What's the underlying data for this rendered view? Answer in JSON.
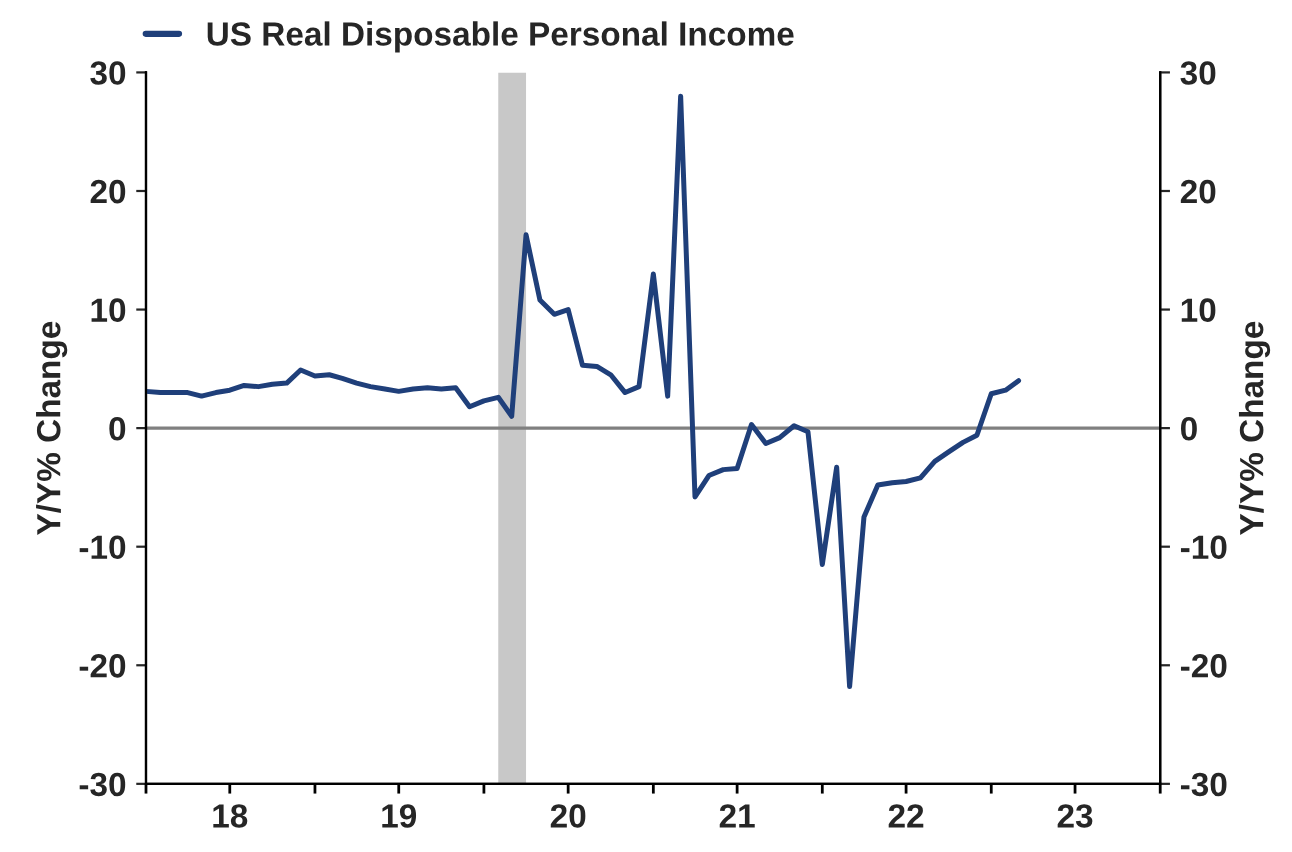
{
  "chart_data": {
    "type": "line",
    "x": [
      "2018-01",
      "2018-02",
      "2018-03",
      "2018-04",
      "2018-05",
      "2018-06",
      "2018-07",
      "2018-08",
      "2018-09",
      "2018-10",
      "2018-11",
      "2018-12",
      "2019-01",
      "2019-02",
      "2019-03",
      "2019-04",
      "2019-05",
      "2019-06",
      "2019-07",
      "2019-08",
      "2019-09",
      "2019-10",
      "2019-11",
      "2019-12",
      "2020-01",
      "2020-02",
      "2020-03",
      "2020-04",
      "2020-05",
      "2020-06",
      "2020-07",
      "2020-08",
      "2020-09",
      "2020-10",
      "2020-11",
      "2020-12",
      "2021-01",
      "2021-02",
      "2021-03",
      "2021-04",
      "2021-05",
      "2021-06",
      "2021-07",
      "2021-08",
      "2021-09",
      "2021-10",
      "2021-11",
      "2021-12",
      "2022-01",
      "2022-02",
      "2022-03",
      "2022-04",
      "2022-05",
      "2022-06",
      "2022-07",
      "2022-08",
      "2022-09",
      "2022-10",
      "2022-11",
      "2022-12",
      "2023-01",
      "2023-02",
      "2023-03"
    ],
    "series": [
      {
        "name": "US Real Disposable Personal Income",
        "color": "#1f3f7a",
        "values": [
          3.1,
          3.0,
          3.0,
          3.0,
          2.7,
          3.0,
          3.2,
          3.6,
          3.5,
          3.7,
          3.8,
          4.9,
          4.4,
          4.5,
          4.2,
          3.8,
          3.5,
          3.3,
          3.1,
          3.3,
          3.4,
          3.3,
          3.4,
          1.8,
          2.3,
          2.6,
          1.0,
          16.3,
          10.8,
          9.6,
          10.0,
          5.3,
          5.2,
          4.5,
          3.0,
          3.5,
          13.0,
          2.7,
          28.0,
          -5.8,
          -4.0,
          -3.5,
          -3.4,
          0.3,
          -1.3,
          -0.8,
          0.2,
          -0.3,
          -11.5,
          -3.3,
          -21.8,
          -7.5,
          -4.8,
          -4.6,
          -4.5,
          -4.2,
          -2.8,
          -2.0,
          -1.2,
          -0.6,
          2.9,
          3.2,
          4.0
        ]
      }
    ],
    "ylabel": "Y/Y% Change",
    "y2label": "Y/Y% Change",
    "ylim": [
      -30,
      30
    ],
    "yticks": [
      -30,
      -20,
      -10,
      0,
      10,
      20,
      30
    ],
    "y2lim": [
      -30,
      30
    ],
    "y2ticks": [
      -30,
      -20,
      -10,
      0,
      10,
      20,
      30
    ],
    "xlim": [
      "2018-01",
      "2024-01"
    ],
    "xticks": [
      {
        "value": "2018-01",
        "label": null
      },
      {
        "value": "2018-07",
        "label": "18"
      },
      {
        "value": "2019-01",
        "label": null
      },
      {
        "value": "2019-07",
        "label": "19"
      },
      {
        "value": "2020-01",
        "label": null
      },
      {
        "value": "2020-07",
        "label": "20"
      },
      {
        "value": "2021-01",
        "label": null
      },
      {
        "value": "2021-07",
        "label": "21"
      },
      {
        "value": "2022-01",
        "label": null
      },
      {
        "value": "2022-07",
        "label": "22"
      },
      {
        "value": "2023-01",
        "label": null
      },
      {
        "value": "2023-07",
        "label": "23"
      },
      {
        "value": "2024-01",
        "label": null
      }
    ],
    "ref_lines": [
      {
        "axis": "y",
        "value": 0,
        "color": "#808080"
      }
    ],
    "bands": [
      {
        "axis": "x",
        "from": "2020-02",
        "to": "2020-04",
        "color": "#c8c8c8"
      }
    ],
    "legend": "top left",
    "grid": false,
    "line_style": "solid",
    "marker": "none"
  }
}
